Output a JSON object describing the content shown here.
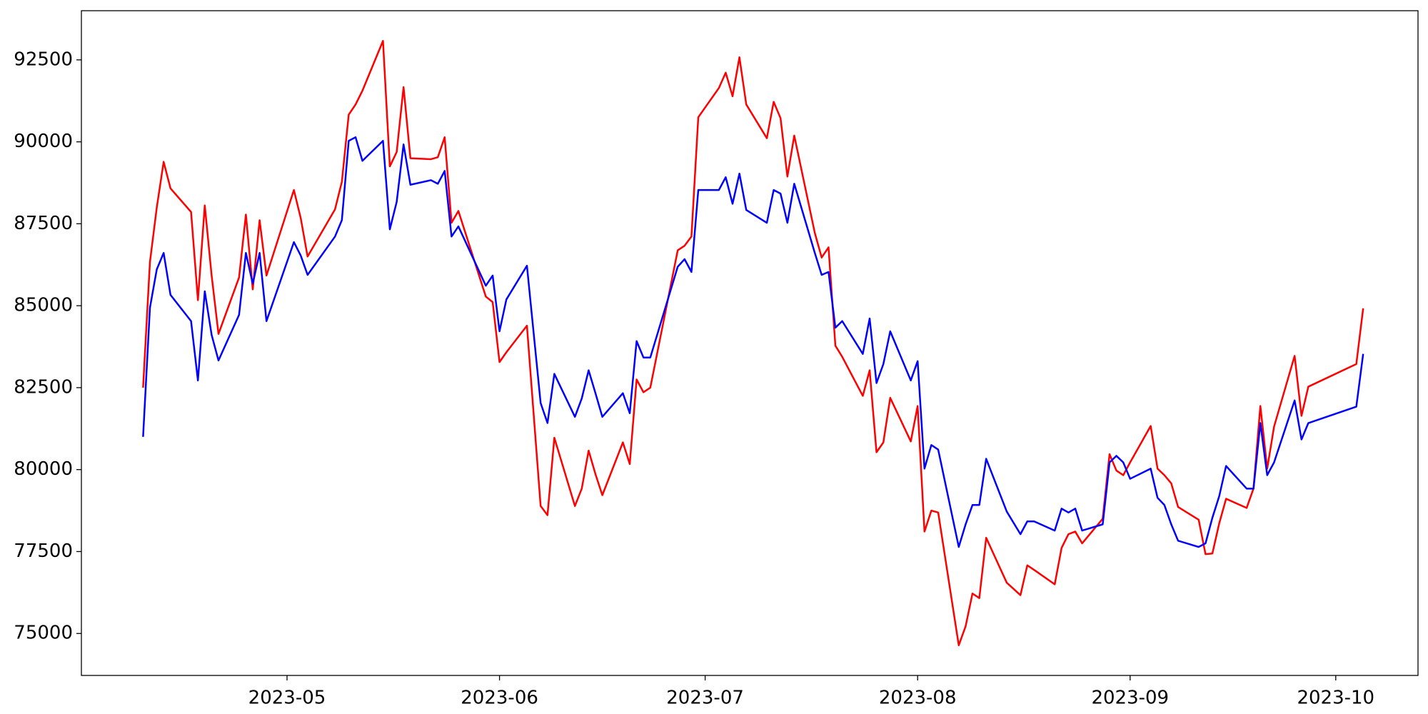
{
  "chart_data": {
    "type": "line",
    "x": [
      "2023-04-10",
      "2023-04-11",
      "2023-04-12",
      "2023-04-13",
      "2023-04-14",
      "2023-04-17",
      "2023-04-18",
      "2023-04-19",
      "2023-04-20",
      "2023-04-21",
      "2023-04-24",
      "2023-04-25",
      "2023-04-26",
      "2023-04-27",
      "2023-04-28",
      "2023-05-02",
      "2023-05-03",
      "2023-05-04",
      "2023-05-08",
      "2023-05-09",
      "2023-05-10",
      "2023-05-11",
      "2023-05-12",
      "2023-05-15",
      "2023-05-16",
      "2023-05-17",
      "2023-05-18",
      "2023-05-19",
      "2023-05-22",
      "2023-05-23",
      "2023-05-24",
      "2023-05-25",
      "2023-05-26",
      "2023-05-30",
      "2023-05-31",
      "2023-06-01",
      "2023-06-02",
      "2023-06-05",
      "2023-06-07",
      "2023-06-08",
      "2023-06-09",
      "2023-06-12",
      "2023-06-13",
      "2023-06-14",
      "2023-06-15",
      "2023-06-16",
      "2023-06-19",
      "2023-06-20",
      "2023-06-21",
      "2023-06-22",
      "2023-06-23",
      "2023-06-27",
      "2023-06-28",
      "2023-06-29",
      "2023-06-30",
      "2023-07-03",
      "2023-07-04",
      "2023-07-05",
      "2023-07-06",
      "2023-07-07",
      "2023-07-10",
      "2023-07-11",
      "2023-07-12",
      "2023-07-13",
      "2023-07-14",
      "2023-07-17",
      "2023-07-18",
      "2023-07-19",
      "2023-07-20",
      "2023-07-21",
      "2023-07-24",
      "2023-07-25",
      "2023-07-26",
      "2023-07-27",
      "2023-07-28",
      "2023-07-31",
      "2023-08-01",
      "2023-08-02",
      "2023-08-03",
      "2023-08-04",
      "2023-08-07",
      "2023-08-08",
      "2023-08-09",
      "2023-08-10",
      "2023-08-11",
      "2023-08-14",
      "2023-08-16",
      "2023-08-17",
      "2023-08-18",
      "2023-08-21",
      "2023-08-22",
      "2023-08-23",
      "2023-08-24",
      "2023-08-25",
      "2023-08-28",
      "2023-08-29",
      "2023-08-30",
      "2023-08-31",
      "2023-09-01",
      "2023-09-04",
      "2023-09-05",
      "2023-09-06",
      "2023-09-07",
      "2023-09-08",
      "2023-09-11",
      "2023-09-12",
      "2023-09-13",
      "2023-09-14",
      "2023-09-15",
      "2023-09-18",
      "2023-09-19",
      "2023-09-20",
      "2023-09-21",
      "2023-09-22",
      "2023-09-25",
      "2023-09-26",
      "2023-09-27",
      "2023-10-04",
      "2023-10-05"
    ],
    "series": [
      {
        "color": "#ff0000",
        "values": [
          82500,
          86330,
          88000,
          89390,
          88580,
          87860,
          85170,
          88060,
          85920,
          84140,
          85860,
          87780,
          85500,
          87610,
          85920,
          88530,
          87670,
          86500,
          87940,
          88780,
          90830,
          91140,
          91560,
          93080,
          89250,
          89690,
          91670,
          89500,
          89470,
          89530,
          90140,
          87530,
          87890,
          85280,
          85110,
          83280,
          83580,
          84390,
          78890,
          78610,
          80970,
          78890,
          79420,
          80580,
          79860,
          79220,
          80830,
          80170,
          82750,
          82360,
          82500,
          86690,
          86830,
          87110,
          90750,
          91640,
          92110,
          91390,
          92580,
          91140,
          90110,
          91220,
          90720,
          88940,
          90190,
          87220,
          86470,
          86780,
          83780,
          83440,
          82250,
          83030,
          80530,
          80830,
          82190,
          80860,
          81940,
          78110,
          78750,
          78690,
          74640,
          75220,
          76220,
          76080,
          77920,
          76550,
          76170,
          77080,
          76940,
          76500,
          77610,
          78030,
          78110,
          77750,
          78500,
          80470,
          79970,
          79830,
          80220,
          81330,
          80030,
          79830,
          79580,
          78860,
          78470,
          77420,
          77440,
          78360,
          79110,
          78830,
          79420,
          81940,
          80030,
          81310,
          83470,
          81640,
          82530,
          83220,
          84920
        ]
      },
      {
        "color": "#0000ff",
        "values": [
          81000,
          84940,
          86110,
          86610,
          85330,
          84530,
          82720,
          85440,
          84110,
          83330,
          84720,
          86610,
          85670,
          86610,
          84530,
          86940,
          86530,
          85940,
          87110,
          87610,
          90030,
          90140,
          89420,
          90030,
          87330,
          88170,
          89920,
          88690,
          88830,
          88720,
          89110,
          87110,
          87420,
          85610,
          85920,
          84220,
          85190,
          86220,
          82030,
          81420,
          82920,
          81610,
          82170,
          83030,
          82330,
          81610,
          82330,
          81720,
          83920,
          83420,
          83420,
          86190,
          86420,
          86030,
          88530,
          88530,
          88920,
          88110,
          89030,
          87920,
          87530,
          88530,
          88420,
          87530,
          88720,
          86610,
          85940,
          86030,
          84330,
          84530,
          83530,
          84610,
          82640,
          83220,
          84220,
          82720,
          83310,
          80030,
          80750,
          80610,
          77640,
          78330,
          78920,
          78920,
          80330,
          78720,
          78030,
          78420,
          78420,
          78140,
          78810,
          78690,
          78810,
          78140,
          78330,
          80220,
          80420,
          80220,
          79720,
          80030,
          79140,
          78920,
          78330,
          77830,
          77640,
          77750,
          78530,
          79190,
          80110,
          79420,
          79420,
          81420,
          79830,
          80220,
          82110,
          80920,
          81420,
          81920,
          83530
        ]
      }
    ],
    "xlim": [
      "2023-04-01",
      "2023-10-13"
    ],
    "xticks": [
      {
        "value": "2023-05-01",
        "label": "2023-05"
      },
      {
        "value": "2023-06-01",
        "label": "2023-06"
      },
      {
        "value": "2023-07-01",
        "label": "2023-07"
      },
      {
        "value": "2023-08-01",
        "label": "2023-08"
      },
      {
        "value": "2023-09-01",
        "label": "2023-09"
      },
      {
        "value": "2023-10-01",
        "label": "2023-10"
      }
    ],
    "ylim": [
      73720,
      94000
    ],
    "yticks": [
      75000,
      77500,
      80000,
      82500,
      85000,
      87500,
      90000,
      92500
    ],
    "grid": false
  }
}
